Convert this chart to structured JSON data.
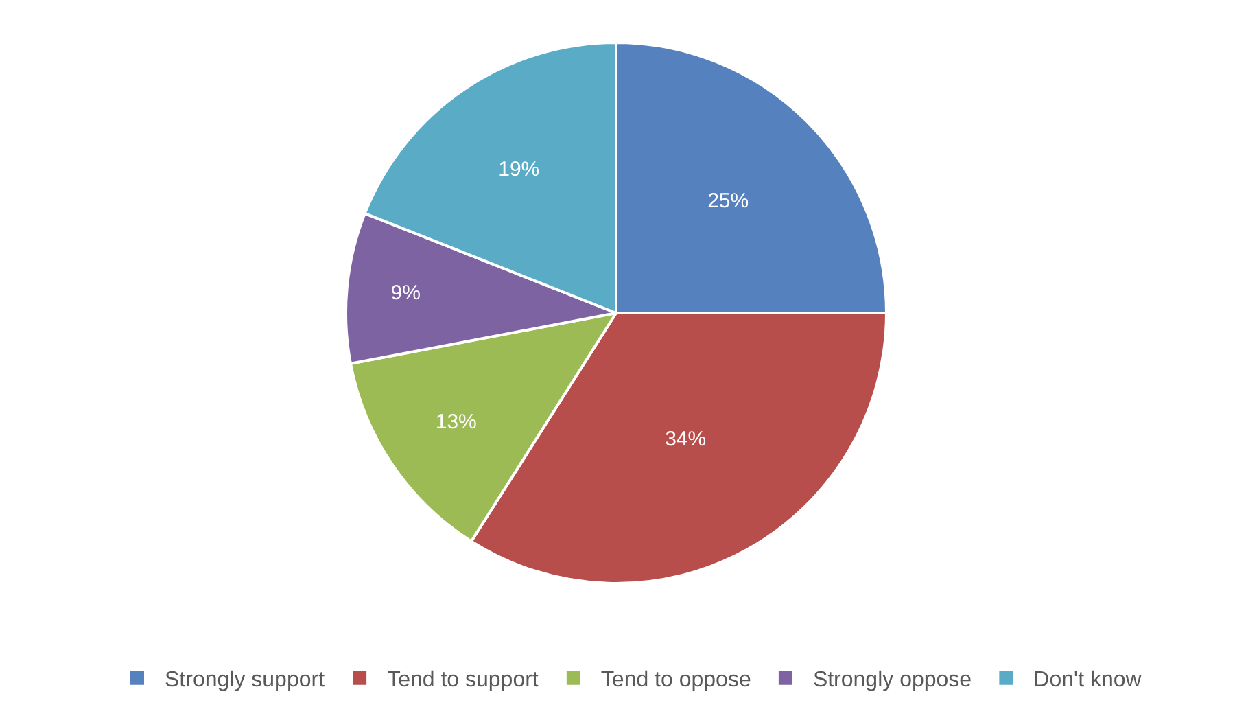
{
  "chart_data": {
    "type": "pie",
    "categories": [
      "Strongly support",
      "Tend to support",
      "Tend to oppose",
      "Strongly oppose",
      "Don't know"
    ],
    "values": [
      25,
      34,
      13,
      9,
      19
    ],
    "colors": [
      "#5681bf",
      "#b84e4b",
      "#9cbb54",
      "#7e63a2",
      "#5aabc6"
    ],
    "value_labels": [
      "25%",
      "34%",
      "13%",
      "9%",
      "19%"
    ],
    "legend": "bottom"
  }
}
